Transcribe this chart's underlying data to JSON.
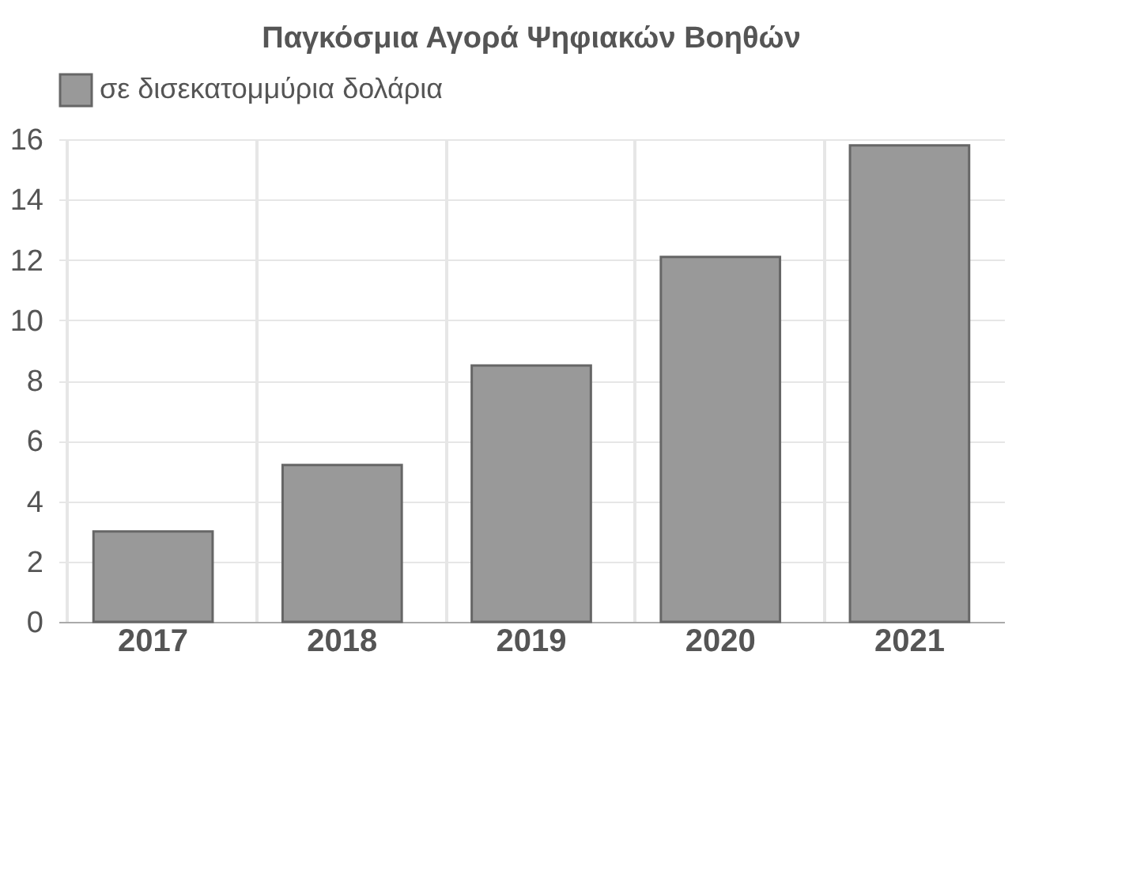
{
  "chart_data": {
    "type": "bar",
    "title": "Παγκόσμια Αγορά Ψηφιακών Βοηθών",
    "categories": [
      "2017",
      "2018",
      "2019",
      "2020",
      "2021"
    ],
    "series": [
      {
        "name": "σε δισεκατομμύρια δολάρια",
        "color": "#999999",
        "values": [
          3.0,
          5.2,
          8.5,
          12.1,
          15.8
        ]
      }
    ],
    "ylim": [
      0,
      16
    ],
    "yticks": [
      0,
      2,
      4,
      6,
      8,
      10,
      12,
      14,
      16
    ],
    "grid": true,
    "legend": "top"
  }
}
